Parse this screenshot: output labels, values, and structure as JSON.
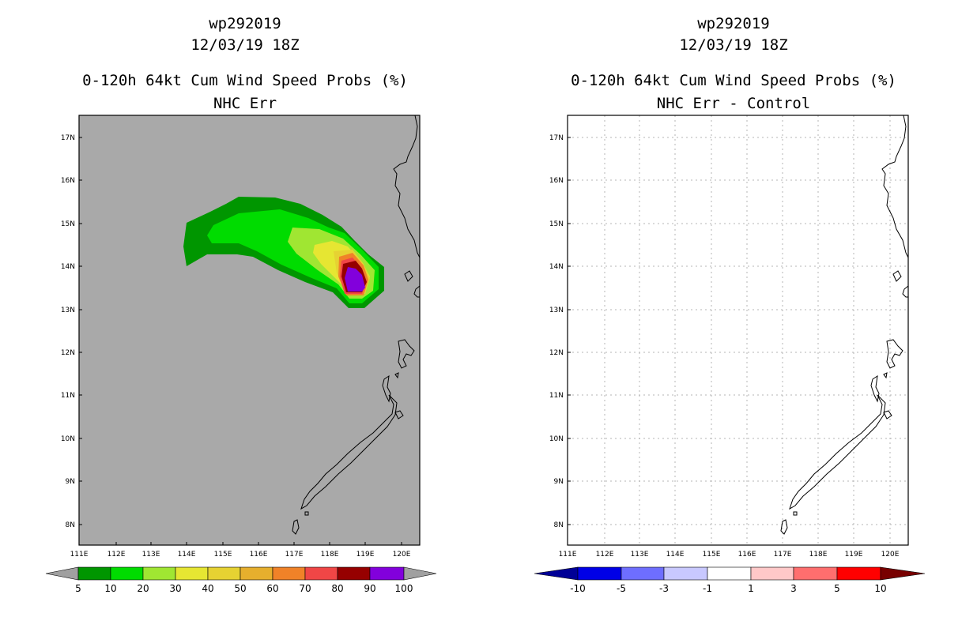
{
  "left_panel": {
    "storm_id": "wp292019",
    "datetime": "12/03/19 18Z",
    "product": "0-120h 64kt Cum Wind Speed Probs (%)",
    "subtitle": "NHC Err",
    "lat_labels": [
      "17N",
      "16N",
      "15N",
      "14N",
      "13N",
      "12N",
      "11N",
      "10N",
      "9N",
      "8N"
    ],
    "lon_labels": [
      "111E",
      "112E",
      "113E",
      "114E",
      "115E",
      "116E",
      "117E",
      "118E",
      "119E",
      "120E"
    ],
    "colorbar": {
      "labels": [
        "5",
        "10",
        "20",
        "30",
        "40",
        "50",
        "60",
        "70",
        "80",
        "90",
        "100"
      ],
      "colors": [
        "#009600",
        "#00dc00",
        "#a0e632",
        "#e6e632",
        "#e6d232",
        "#e6af2d",
        "#f08228",
        "#f04646",
        "#960000",
        "#8200dc"
      ],
      "end_color": "#a0a0a0"
    },
    "background_color": "#a9a9a9"
  },
  "right_panel": {
    "storm_id": "wp292019",
    "datetime": "12/03/19 18Z",
    "product": "0-120h 64kt Cum Wind Speed Probs (%)",
    "subtitle": "NHC Err - Control",
    "lat_labels": [
      "17N",
      "16N",
      "15N",
      "14N",
      "13N",
      "12N",
      "11N",
      "10N",
      "9N",
      "8N"
    ],
    "lon_labels": [
      "111E",
      "112E",
      "113E",
      "114E",
      "115E",
      "116E",
      "117E",
      "118E",
      "119E",
      "120E"
    ],
    "colorbar": {
      "labels": [
        "-10",
        "-5",
        "-3",
        "-1",
        "1",
        "3",
        "5",
        "10"
      ],
      "colors": [
        "#0000e6",
        "#6e6eff",
        "#c8c8ff",
        "#ffffff",
        "#ffc8c8",
        "#ff6e6e",
        "#ff0000"
      ],
      "low_color": "#000096",
      "high_color": "#780000"
    },
    "background_color": "#ffffff"
  }
}
